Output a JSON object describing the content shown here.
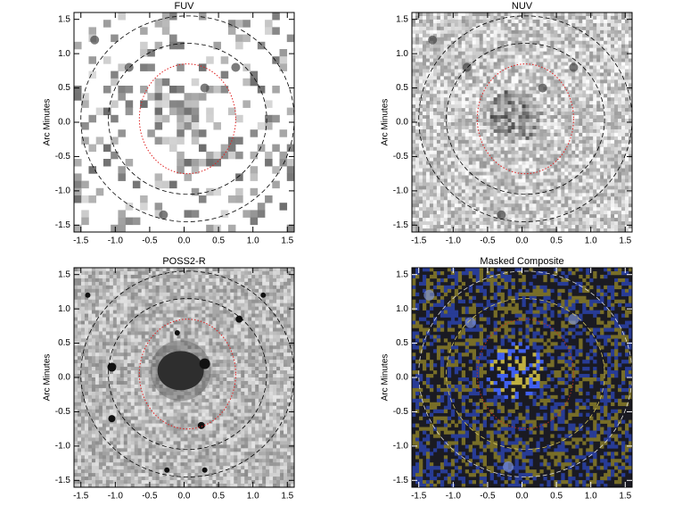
{
  "chart_data": [
    {
      "type": "image",
      "title": "FUV",
      "ylabel": "Arc Minutes",
      "xlim": [
        -1.6,
        1.6
      ],
      "ylim": [
        -1.6,
        1.6
      ],
      "xticks": [
        -1.5,
        {
          "value": -1,
          "label": "-1.0"
        },
        -0.5,
        {
          "value": 0,
          "label": "0.0"
        },
        0.5,
        {
          "value": 1,
          "label": "1.0"
        },
        1.5
      ],
      "yticks": [
        -1.5,
        {
          "value": -1,
          "label": "-1.0"
        },
        -0.5,
        {
          "value": 0,
          "label": "0.0"
        },
        0.5,
        {
          "value": 1,
          "label": "1.0"
        },
        1.5
      ]
    },
    {
      "type": "image",
      "title": "NUV",
      "ylabel": "Arc Minutes",
      "xlim": [
        -1.6,
        1.6
      ],
      "ylim": [
        -1.6,
        1.6
      ],
      "xticks": [
        -1.5,
        {
          "value": -1,
          "label": "-1.0"
        },
        -0.5,
        {
          "value": 0,
          "label": "0.0"
        },
        0.5,
        {
          "value": 1,
          "label": "1.0"
        },
        1.5
      ],
      "yticks": [
        -1.5,
        {
          "value": -1,
          "label": "-1.0"
        },
        -0.5,
        {
          "value": 0,
          "label": "0.0"
        },
        0.5,
        {
          "value": 1,
          "label": "1.0"
        },
        1.5
      ]
    },
    {
      "type": "image",
      "title": "POSS2-R",
      "ylabel": "Arc Minutes",
      "xlim": [
        -1.6,
        1.6
      ],
      "ylim": [
        -1.6,
        1.6
      ],
      "xticks": [
        -1.5,
        {
          "value": -1,
          "label": "-1.0"
        },
        -0.5,
        {
          "value": 0,
          "label": "0.0"
        },
        0.5,
        {
          "value": 1,
          "label": "1.0"
        },
        1.5
      ],
      "yticks": [
        -1.5,
        {
          "value": -1,
          "label": "-1.0"
        },
        -0.5,
        {
          "value": 0,
          "label": "0.0"
        },
        0.5,
        {
          "value": 1,
          "label": "1.0"
        },
        1.5
      ]
    },
    {
      "type": "image",
      "title": "Masked Composite",
      "ylabel": "Arc Minutes",
      "xlim": [
        -1.6,
        1.6
      ],
      "ylim": [
        -1.6,
        1.6
      ],
      "xticks": [
        -1.5,
        {
          "value": -1,
          "label": "-1.0"
        },
        -0.5,
        {
          "value": 0,
          "label": "0.0"
        },
        0.5,
        {
          "value": 1,
          "label": "1.0"
        },
        1.5
      ],
      "yticks": [
        -1.5,
        {
          "value": -1,
          "label": "-1.0"
        },
        -0.5,
        {
          "value": 0,
          "label": "0.0"
        },
        0.5,
        {
          "value": 1,
          "label": "1.0"
        },
        1.5
      ]
    }
  ]
}
